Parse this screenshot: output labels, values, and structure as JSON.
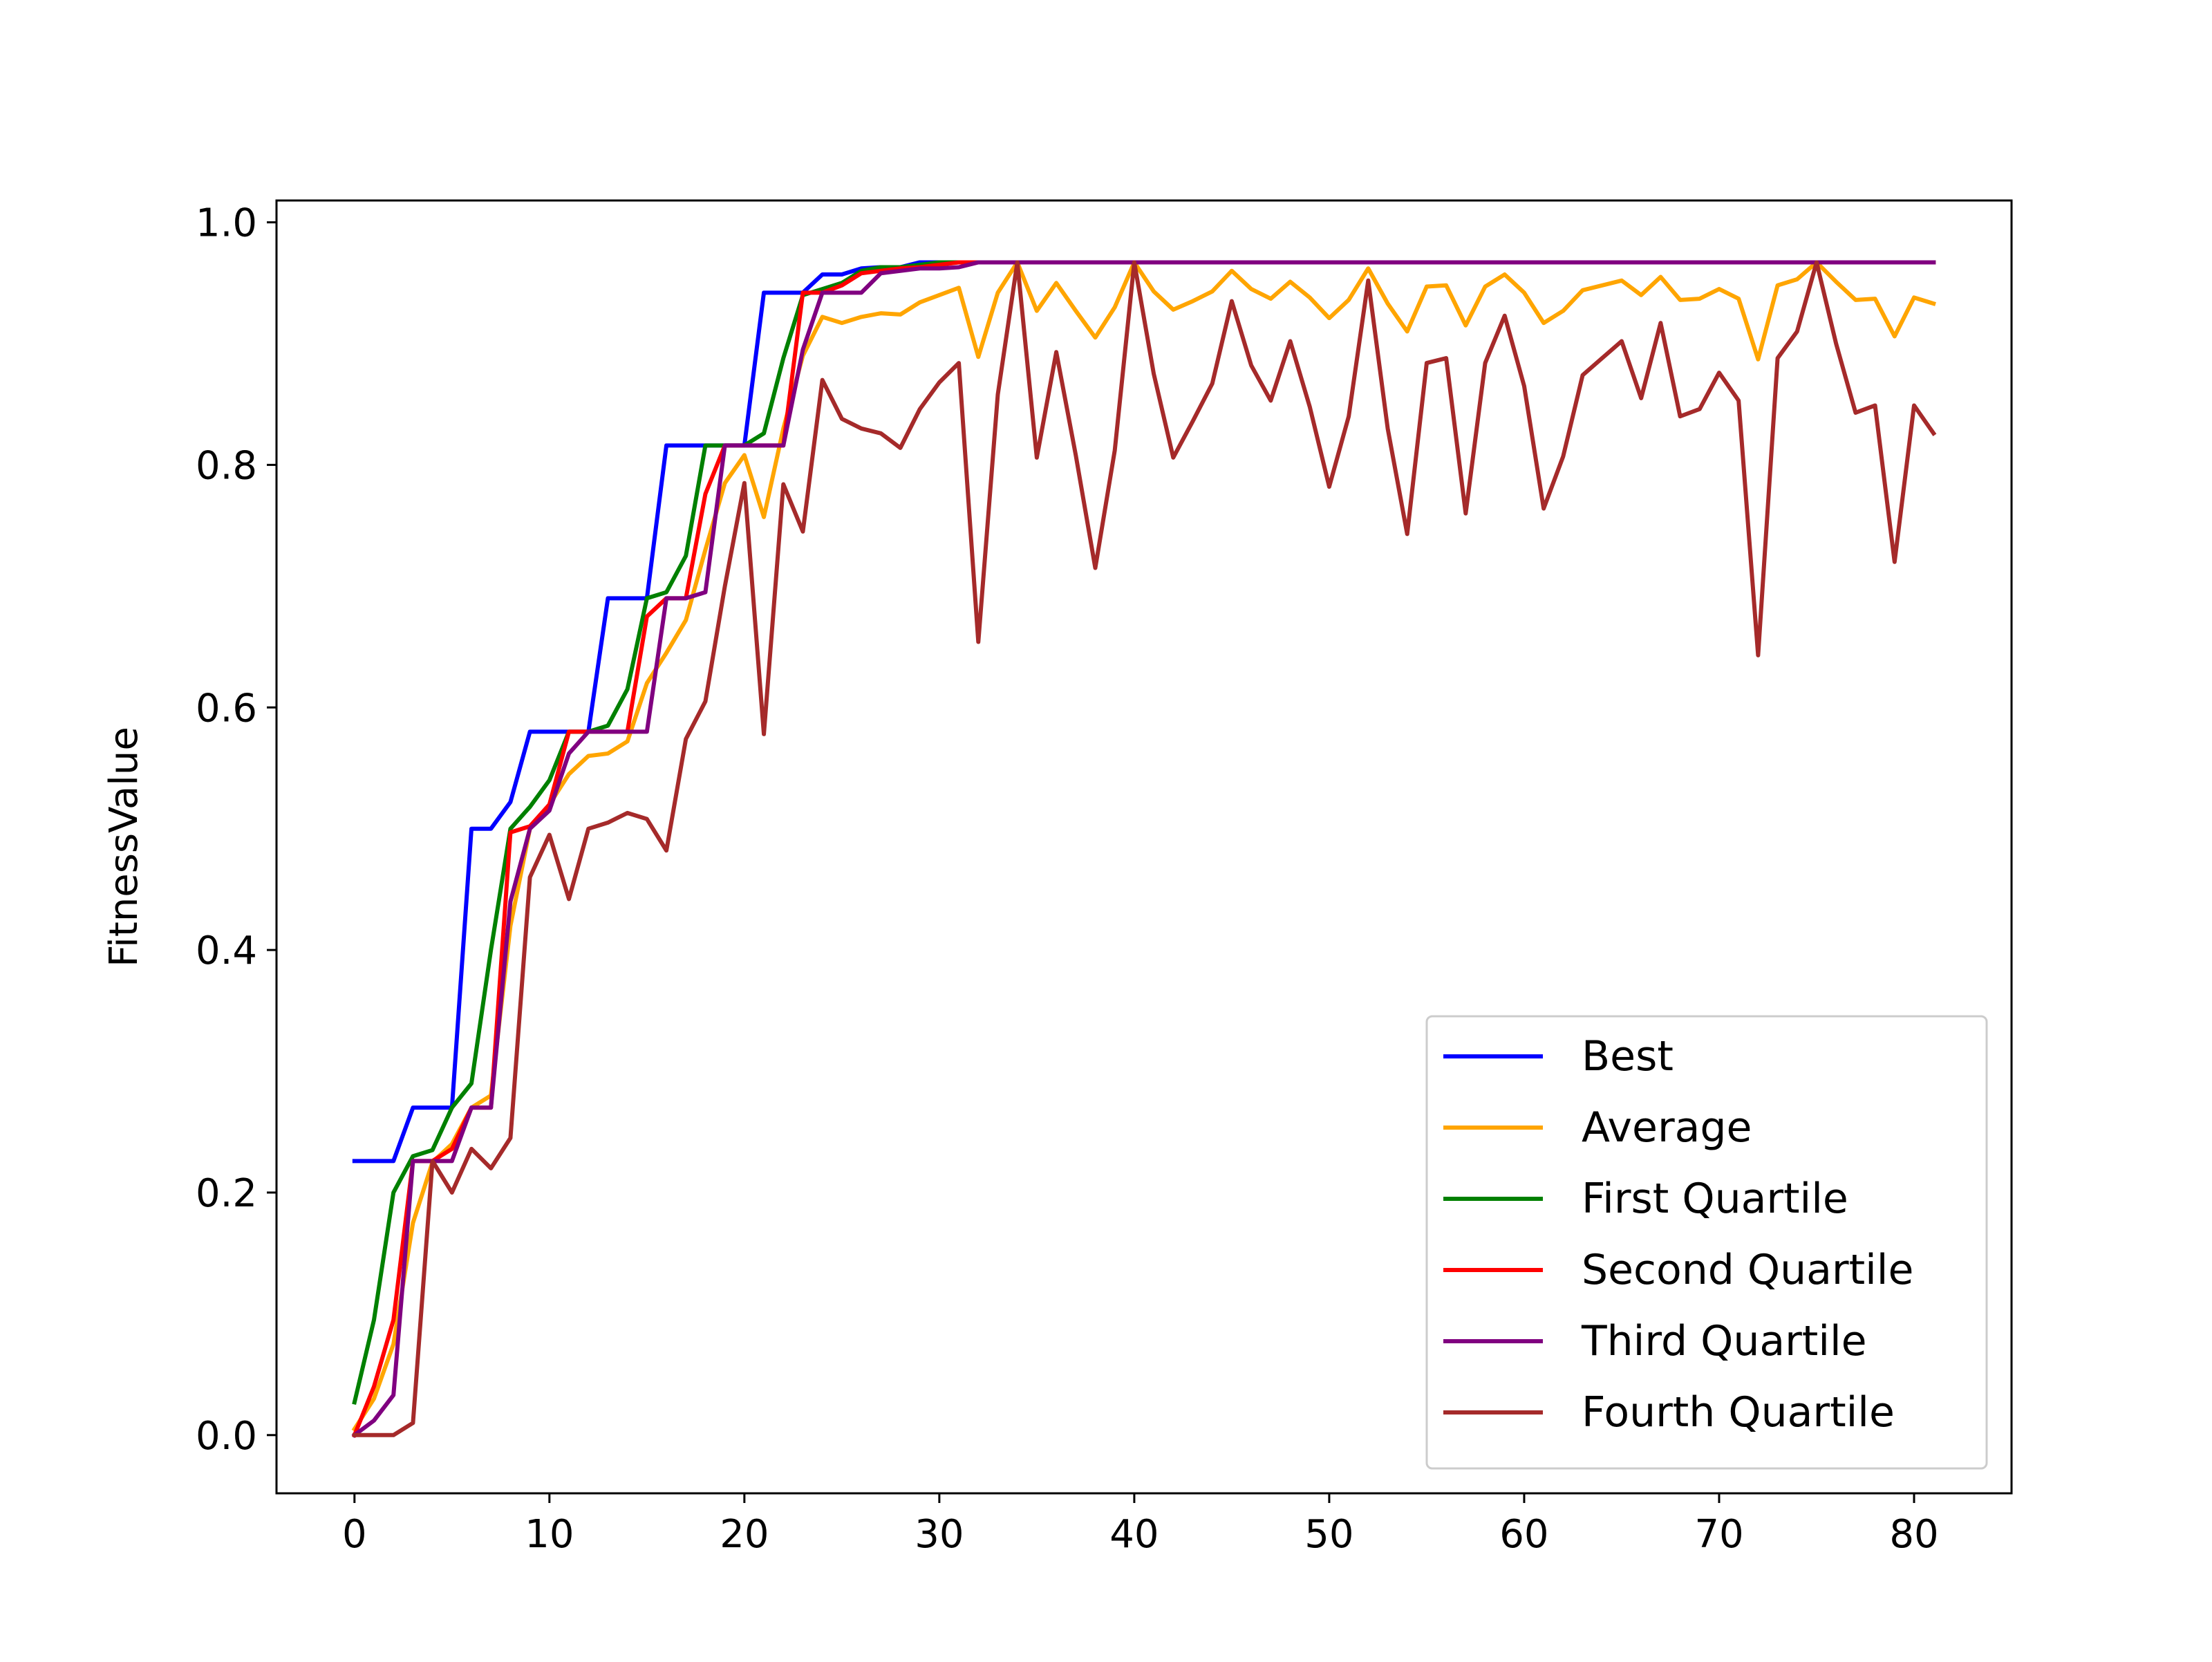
{
  "chart_data": {
    "type": "line",
    "title": "",
    "xlabel": "",
    "ylabel": "FitnessValue",
    "xlim": [
      -4,
      85
    ],
    "ylim": [
      -0.048,
      1.018
    ],
    "xticks": [
      0,
      10,
      20,
      30,
      40,
      50,
      60,
      70,
      80
    ],
    "xtick_labels": [
      "0",
      "10",
      "20",
      "30",
      "40",
      "50",
      "60",
      "70",
      "80"
    ],
    "yticks": [
      0.0,
      0.2,
      0.4,
      0.6,
      0.8,
      1.0
    ],
    "ytick_labels": [
      "0.0",
      "0.2",
      "0.4",
      "0.6",
      "0.8",
      "1.0"
    ],
    "grid": false,
    "legend_position": "lower-right",
    "series": [
      {
        "name": "Best",
        "color": "#0000ff",
        "values": [
          0.226,
          0.226,
          0.226,
          0.27,
          0.27,
          0.27,
          0.5,
          0.5,
          0.522,
          0.58,
          0.58,
          0.58,
          0.58,
          0.69,
          0.69,
          0.69,
          0.816,
          0.816,
          0.816,
          0.816,
          0.816,
          0.942,
          0.942,
          0.942,
          0.957,
          0.957,
          0.962,
          0.963,
          0.963,
          0.967,
          0.967,
          0.967,
          0.967,
          0.967,
          0.967,
          0.967,
          0.967,
          0.967,
          0.967,
          0.967,
          0.967,
          0.967,
          0.967,
          0.967,
          0.967,
          0.967,
          0.967,
          0.967,
          0.967,
          0.967,
          0.967,
          0.967,
          0.967,
          0.967,
          0.967,
          0.967,
          0.967,
          0.967,
          0.967,
          0.967,
          0.967,
          0.967,
          0.967,
          0.967,
          0.967,
          0.967,
          0.967,
          0.967,
          0.967,
          0.967,
          0.967,
          0.967,
          0.967,
          0.967,
          0.967,
          0.967,
          0.967,
          0.967,
          0.967,
          0.967,
          0.967,
          0.967
        ]
      },
      {
        "name": "Average",
        "color": "#ffa500",
        "values": [
          0.005,
          0.03,
          0.075,
          0.175,
          0.225,
          0.24,
          0.27,
          0.28,
          0.42,
          0.5,
          0.52,
          0.545,
          0.56,
          0.562,
          0.572,
          0.62,
          0.645,
          0.672,
          0.73,
          0.785,
          0.808,
          0.757,
          0.83,
          0.89,
          0.922,
          0.917,
          0.922,
          0.925,
          0.924,
          0.934,
          0.94,
          0.946,
          0.889,
          0.942,
          0.967,
          0.927,
          0.95,
          0.927,
          0.905,
          0.93,
          0.967,
          0.943,
          0.928,
          0.935,
          0.943,
          0.96,
          0.945,
          0.937,
          0.951,
          0.938,
          0.921,
          0.936,
          0.962,
          0.933,
          0.91,
          0.947,
          0.948,
          0.915,
          0.947,
          0.957,
          0.942,
          0.917,
          0.927,
          0.944,
          0.948,
          0.952,
          0.94,
          0.955,
          0.936,
          0.937,
          0.945,
          0.937,
          0.887,
          0.948,
          0.953,
          0.967,
          0.951,
          0.936,
          0.937,
          0.906,
          0.938,
          0.933
        ]
      },
      {
        "name": "First Quartile",
        "color": "#008000",
        "values": [
          0.027,
          0.095,
          0.2,
          0.23,
          0.235,
          0.27,
          0.29,
          0.4,
          0.5,
          0.518,
          0.54,
          0.58,
          0.58,
          0.585,
          0.615,
          0.69,
          0.695,
          0.725,
          0.816,
          0.816,
          0.816,
          0.826,
          0.888,
          0.94,
          0.945,
          0.95,
          0.96,
          0.963,
          0.963,
          0.965,
          0.967,
          0.967,
          0.967,
          0.967,
          0.967,
          0.967,
          0.967,
          0.967,
          0.967,
          0.967,
          0.967,
          0.967,
          0.967,
          0.967,
          0.967,
          0.967,
          0.967,
          0.967,
          0.967,
          0.967,
          0.967,
          0.967,
          0.967,
          0.967,
          0.967,
          0.967,
          0.967,
          0.967,
          0.967,
          0.967,
          0.967,
          0.967,
          0.967,
          0.967,
          0.967,
          0.967,
          0.967,
          0.967,
          0.967,
          0.967,
          0.967,
          0.967,
          0.967,
          0.967,
          0.967,
          0.967,
          0.967,
          0.967,
          0.967,
          0.967,
          0.967,
          0.967
        ]
      },
      {
        "name": "Second Quartile",
        "color": "#ff0000",
        "values": [
          0.0,
          0.04,
          0.095,
          0.226,
          0.226,
          0.236,
          0.27,
          0.27,
          0.497,
          0.502,
          0.52,
          0.58,
          0.58,
          0.58,
          0.58,
          0.675,
          0.69,
          0.69,
          0.776,
          0.816,
          0.816,
          0.816,
          0.816,
          0.942,
          0.942,
          0.948,
          0.958,
          0.96,
          0.962,
          0.963,
          0.965,
          0.967,
          0.967,
          0.967,
          0.967,
          0.967,
          0.967,
          0.967,
          0.967,
          0.967,
          0.967,
          0.967,
          0.967,
          0.967,
          0.967,
          0.967,
          0.967,
          0.967,
          0.967,
          0.967,
          0.967,
          0.967,
          0.967,
          0.967,
          0.967,
          0.967,
          0.967,
          0.967,
          0.967,
          0.967,
          0.967,
          0.967,
          0.967,
          0.967,
          0.967,
          0.967,
          0.967,
          0.967,
          0.967,
          0.967,
          0.967,
          0.967,
          0.967,
          0.967,
          0.967,
          0.967,
          0.967,
          0.967,
          0.967,
          0.967,
          0.967,
          0.967
        ]
      },
      {
        "name": "Third Quartile",
        "color": "#800080",
        "values": [
          0.0,
          0.012,
          0.033,
          0.226,
          0.226,
          0.226,
          0.27,
          0.27,
          0.44,
          0.5,
          0.515,
          0.562,
          0.58,
          0.58,
          0.58,
          0.58,
          0.69,
          0.69,
          0.695,
          0.816,
          0.816,
          0.816,
          0.816,
          0.895,
          0.942,
          0.942,
          0.942,
          0.958,
          0.96,
          0.962,
          0.962,
          0.963,
          0.967,
          0.967,
          0.967,
          0.967,
          0.967,
          0.967,
          0.967,
          0.967,
          0.967,
          0.967,
          0.967,
          0.967,
          0.967,
          0.967,
          0.967,
          0.967,
          0.967,
          0.967,
          0.967,
          0.967,
          0.967,
          0.967,
          0.967,
          0.967,
          0.967,
          0.967,
          0.967,
          0.967,
          0.967,
          0.967,
          0.967,
          0.967,
          0.967,
          0.967,
          0.967,
          0.967,
          0.967,
          0.967,
          0.967,
          0.967,
          0.967,
          0.967,
          0.967,
          0.967,
          0.967,
          0.967,
          0.967,
          0.967,
          0.967,
          0.967
        ]
      },
      {
        "name": "Fourth Quartile",
        "color": "#a52a2a",
        "values": [
          0.0,
          0.0,
          0.0,
          0.01,
          0.226,
          0.2,
          0.236,
          0.22,
          0.245,
          0.46,
          0.495,
          0.442,
          0.5,
          0.505,
          0.513,
          0.508,
          0.482,
          0.574,
          0.605,
          0.7,
          0.785,
          0.578,
          0.784,
          0.745,
          0.87,
          0.838,
          0.83,
          0.826,
          0.814,
          0.846,
          0.868,
          0.884,
          0.654,
          0.858,
          0.967,
          0.806,
          0.893,
          0.808,
          0.715,
          0.812,
          0.967,
          0.875,
          0.806,
          0.836,
          0.867,
          0.935,
          0.882,
          0.853,
          0.902,
          0.848,
          0.782,
          0.84,
          0.952,
          0.83,
          0.743,
          0.884,
          0.888,
          0.76,
          0.884,
          0.923,
          0.865,
          0.764,
          0.807,
          0.874,
          0.888,
          0.902,
          0.855,
          0.917,
          0.84,
          0.846,
          0.876,
          0.853,
          0.643,
          0.888,
          0.91,
          0.967,
          0.9,
          0.843,
          0.849,
          0.72,
          0.849,
          0.826
        ]
      }
    ]
  }
}
